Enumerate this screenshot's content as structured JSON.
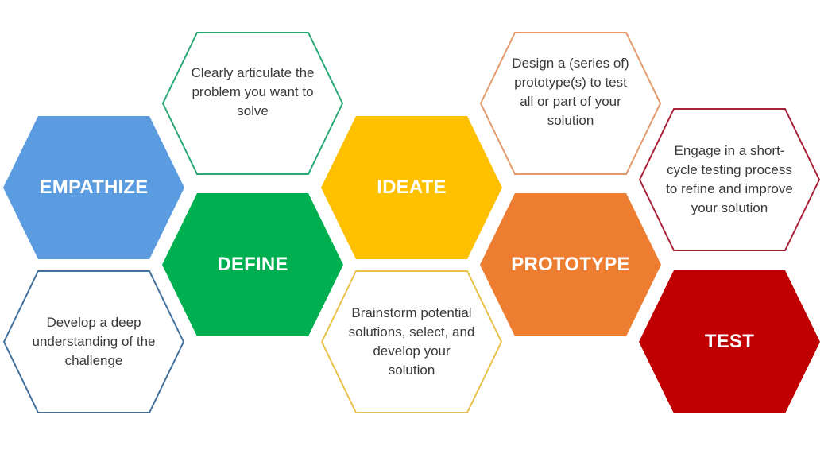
{
  "stages": [
    {
      "id": "empathize",
      "label": "EMPATHIZE",
      "color": "#5b9bdf"
    },
    {
      "id": "define",
      "label": "DEFINE",
      "color": "#00b050"
    },
    {
      "id": "ideate",
      "label": "IDEATE",
      "color": "#ffc000"
    },
    {
      "id": "prototype",
      "label": "PROTOTYPE",
      "color": "#ed7d31"
    },
    {
      "id": "test",
      "label": "TEST",
      "color": "#c00000"
    }
  ],
  "descriptions": [
    {
      "id": "empathize",
      "text": "Develop a deep understanding of the challenge",
      "border_color": "#41719c"
    },
    {
      "id": "define",
      "text": "Clearly articulate the problem you want to solve",
      "border_color": "#2aa876"
    },
    {
      "id": "ideate",
      "text": "Brainstorm potential solutions, select, and develop your solution",
      "border_color": "#e8c24a"
    },
    {
      "id": "prototype",
      "text": "Design a (series of) prototype(s) to test all or part of your solution",
      "border_color": "#e39a6c"
    },
    {
      "id": "test",
      "text": "Engage in a short-cycle testing process to refine and improve your solution",
      "border_color": "#a8223a"
    }
  ]
}
